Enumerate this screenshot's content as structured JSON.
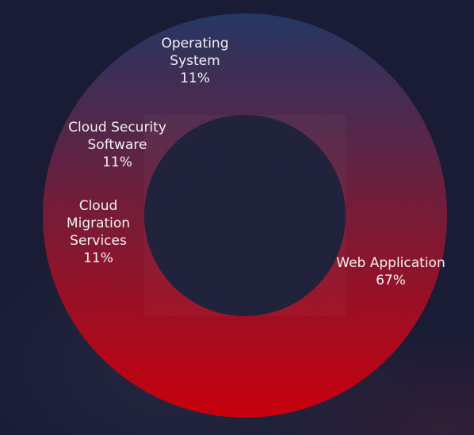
{
  "chart_data": {
    "type": "pie",
    "variant": "donut",
    "title": "",
    "categories": [
      "Web Application",
      "Cloud Migration Services",
      "Cloud Security Software",
      "Operating System"
    ],
    "category_lines": [
      [
        "Web Application"
      ],
      [
        "Cloud",
        "Migration",
        "Services"
      ],
      [
        "Cloud Security",
        "Software"
      ],
      [
        "Operating",
        "System"
      ]
    ],
    "values": [
      67,
      11,
      11,
      11
    ],
    "value_labels": [
      "67%",
      "11%",
      "11%",
      "11%"
    ],
    "legend": "none",
    "colors": {
      "slice_top": "#253763",
      "slice_bottom": "#c8000c",
      "background": "#1a1c36",
      "label_text": "#f2f2f2"
    }
  }
}
